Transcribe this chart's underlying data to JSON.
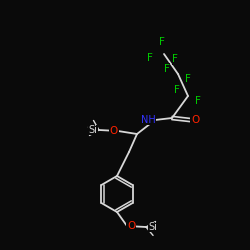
{
  "background_color": "#0a0a0a",
  "bond_color": "#d8d8d8",
  "atom_colors": {
    "F": "#00cc00",
    "O": "#ff2200",
    "N": "#3333ff",
    "Si": "#d8d8d8",
    "C": "#d8d8d8"
  },
  "figsize": [
    2.5,
    2.5
  ],
  "dpi": 100
}
